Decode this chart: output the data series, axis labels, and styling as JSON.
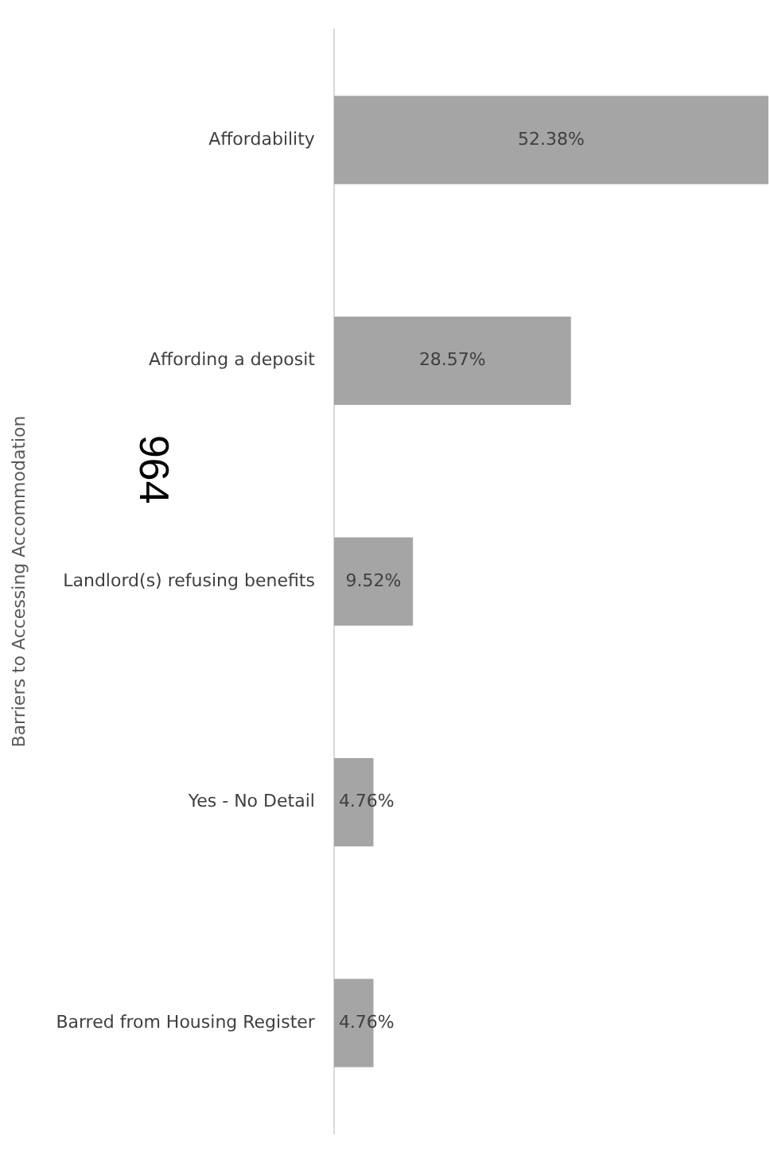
{
  "chart_data": {
    "type": "bar",
    "orientation": "horizontal",
    "ylabel": "Barriers to Accessing Accommodation",
    "categories": [
      "Affordability",
      "Affording a deposit",
      "Landlord(s) refusing benefits",
      "Yes - No Detail",
      "Barred from Housing Register"
    ],
    "values": [
      52.38,
      28.57,
      9.52,
      4.76,
      4.76
    ],
    "value_labels": [
      "52.38%",
      "28.57%",
      "9.52%",
      "4.76%",
      "4.76%"
    ],
    "color": "#a5a5a5",
    "grid": false,
    "legend": false,
    "tick_labels": "y",
    "annotations": [
      "964"
    ]
  }
}
